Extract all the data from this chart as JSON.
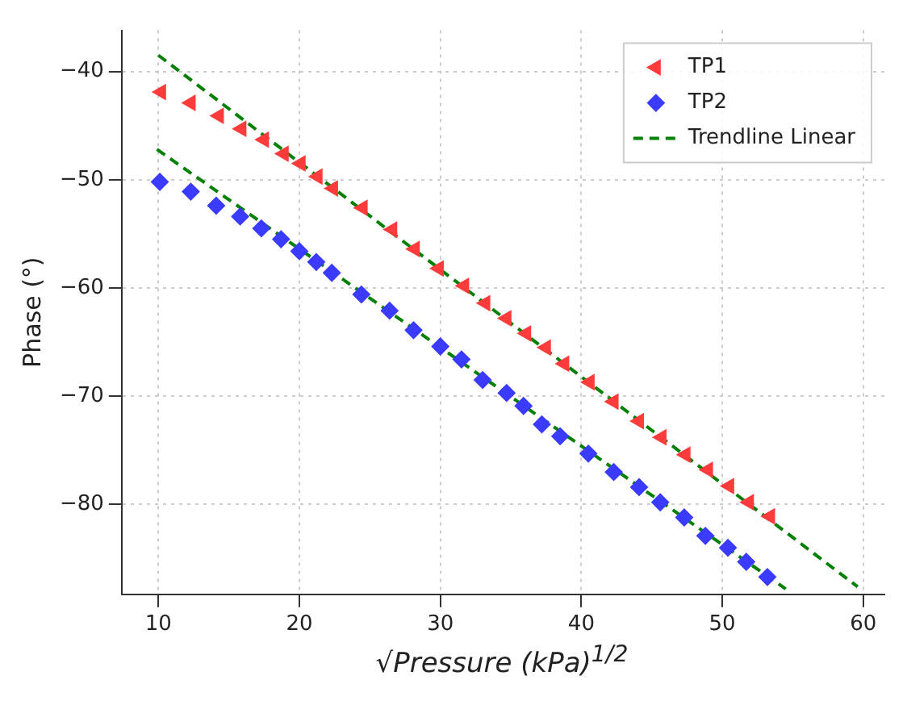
{
  "chart_data": {
    "type": "scatter",
    "xlabel": "√Pressure (kPa)$^{1/2}$",
    "ylabel": "Phase (°)",
    "xlim": [
      7.4,
      61.5
    ],
    "xticks": [
      10,
      20,
      30,
      40,
      50,
      60
    ],
    "ylim": [
      -88.3,
      -36.2
    ],
    "yticks": [
      -80,
      -70,
      -60,
      -50,
      -40
    ],
    "grid": true,
    "legend": "top right",
    "series": [
      {
        "name": "TP1",
        "marker": "triangle",
        "color": "#ff3b3b",
        "x": [
          10.2,
          12.3,
          14.3,
          15.9,
          17.5,
          18.9,
          20.1,
          21.3,
          22.4,
          24.5,
          26.6,
          28.2,
          29.9,
          31.7,
          33.2,
          34.7,
          36.1,
          37.5,
          38.8,
          40.6,
          42.3,
          44.1,
          45.7,
          47.4,
          49.0,
          50.5,
          51.9,
          53.4
        ],
        "values": [
          -41.9,
          -42.9,
          -44.1,
          -45.3,
          -46.3,
          -47.6,
          -48.5,
          -49.7,
          -50.8,
          -52.6,
          -54.6,
          -56.4,
          -58.2,
          -59.8,
          -61.4,
          -62.8,
          -64.2,
          -65.5,
          -67.0,
          -68.7,
          -70.5,
          -72.3,
          -73.8,
          -75.4,
          -76.8,
          -78.3,
          -79.8,
          -81.1
        ]
      },
      {
        "name": "TP2",
        "marker": "diamond",
        "color": "#3b3bff",
        "x": [
          10.1,
          12.3,
          14.1,
          15.8,
          17.3,
          18.7,
          20.0,
          21.2,
          22.3,
          24.4,
          26.4,
          28.1,
          30.0,
          31.5,
          33.0,
          34.7,
          35.9,
          37.2,
          38.5,
          40.5,
          42.3,
          44.1,
          45.6,
          47.3,
          48.8,
          50.4,
          51.7,
          53.2
        ],
        "values": [
          -50.2,
          -51.1,
          -52.4,
          -53.4,
          -54.5,
          -55.5,
          -56.6,
          -57.6,
          -58.6,
          -60.6,
          -62.1,
          -63.9,
          -65.4,
          -66.6,
          -68.5,
          -69.7,
          -70.9,
          -72.6,
          -73.7,
          -75.3,
          -77.0,
          -78.4,
          -79.8,
          -81.2,
          -82.9,
          -84.0,
          -85.3,
          -86.7
        ]
      },
      {
        "name": "Trendline Linear",
        "type": "line",
        "marker": "none",
        "line_style": "dashed",
        "color": "#008000",
        "x": [
          10,
          59.6
        ],
        "values": [
          -38.5,
          -87.6
        ]
      },
      {
        "type": "line",
        "marker": "none",
        "line_style": "dashed",
        "color": "#008000",
        "x": [
          9.9,
          54.5
        ],
        "values": [
          -47.2,
          -87.8
        ]
      }
    ]
  }
}
